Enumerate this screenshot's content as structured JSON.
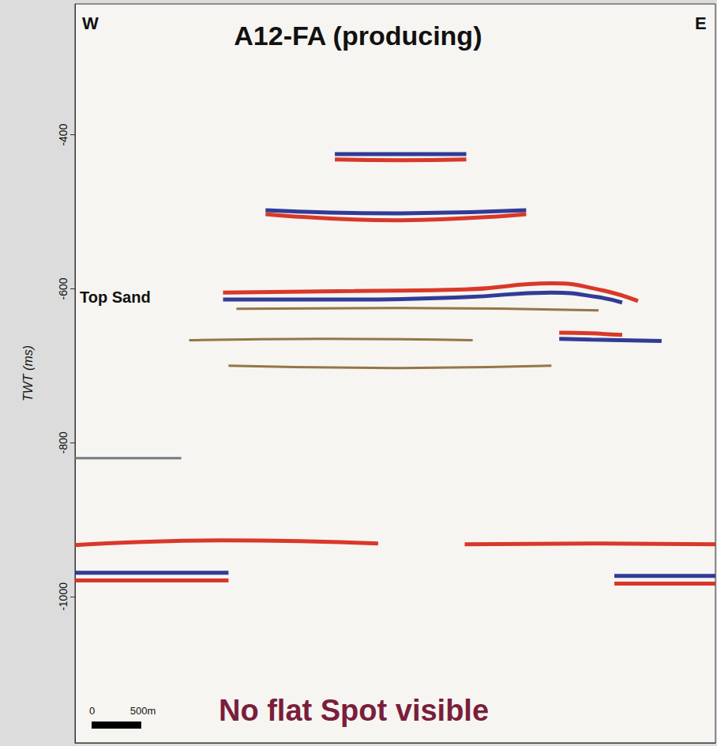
{
  "chart_data": {
    "type": "line",
    "title": "A12-FA (producing)",
    "y_label": "TWT (ms)",
    "annotations": [
      "W",
      "E",
      "Top Sand",
      "No flat Spot visible"
    ],
    "scale_bar": {
      "value": 500,
      "labels": [
        "0",
        "500m"
      ]
    },
    "xlim": [
      0,
      6450
    ],
    "ylim": [
      -1190,
      -230
    ],
    "yticks": [
      -400,
      -600,
      -800,
      -1000
    ],
    "grid": false,
    "tick_labels": "y",
    "series": [
      {
        "color": "#1f2a8f",
        "x": [
          2617,
          3280,
          3941
        ],
        "values": [
          -425,
          -425,
          -425
        ]
      },
      {
        "color": "#d62718",
        "x": [
          2617,
          3280,
          3941
        ],
        "values": [
          -432,
          -433,
          -432
        ]
      },
      {
        "color": "#1f2a8f",
        "x": [
          1919,
          3230,
          4544
        ],
        "values": [
          -498,
          -502,
          -498
        ]
      },
      {
        "color": "#d62718",
        "x": [
          1919,
          3230,
          4544
        ],
        "values": [
          -503,
          -511,
          -503
        ]
      },
      {
        "color": "#d62718",
        "x": [
          1491,
          2815,
          3925,
          4798,
          5273,
          5670
        ],
        "values": [
          -605,
          -603,
          -601,
          -593,
          -601,
          -616
        ]
      },
      {
        "color": "#1f2a8f",
        "x": [
          1491,
          2815,
          3925,
          4798,
          5273,
          5511
        ],
        "values": [
          -614,
          -614,
          -611,
          -605,
          -611,
          -618
        ]
      },
      {
        "color": "#8b6a3a",
        "x": [
          1626,
          3200,
          5273
        ],
        "values": [
          -626,
          -625,
          -628
        ]
      },
      {
        "color": "#8b6a3a",
        "x": [
          1150,
          2500,
          4005
        ],
        "values": [
          -667,
          -665,
          -667
        ]
      },
      {
        "color": "#d62718",
        "x": [
          4877,
          5200,
          5511
        ],
        "values": [
          -657,
          -658,
          -660
        ]
      },
      {
        "color": "#1f2a8f",
        "x": [
          4877,
          5200,
          5908
        ],
        "values": [
          -665,
          -666,
          -668
        ]
      },
      {
        "color": "#8b6a3a",
        "x": [
          1546,
          3200,
          4798
        ],
        "values": [
          -700,
          -703,
          -700
        ]
      },
      {
        "color": "#6a6f7a",
        "x": [
          0,
          1070
        ],
        "values": [
          -820,
          -820
        ]
      },
      {
        "color": "#d62718",
        "x": [
          0,
          1475,
          3053
        ],
        "values": [
          -933,
          -927,
          -931
        ]
      },
      {
        "color": "#d62718",
        "x": [
          3925,
          5200,
          6450
        ],
        "values": [
          -932,
          -931,
          -932
        ]
      },
      {
        "color": "#1f2a8f",
        "x": [
          0,
          1546
        ],
        "values": [
          -969,
          -969
        ]
      },
      {
        "color": "#d62718",
        "x": [
          0,
          1546
        ],
        "values": [
          -979,
          -979
        ]
      },
      {
        "color": "#1f2a8f",
        "x": [
          5432,
          6450
        ],
        "values": [
          -973,
          -973
        ]
      },
      {
        "color": "#d62718",
        "x": [
          5432,
          6450
        ],
        "values": [
          -983,
          -983
        ]
      }
    ]
  }
}
